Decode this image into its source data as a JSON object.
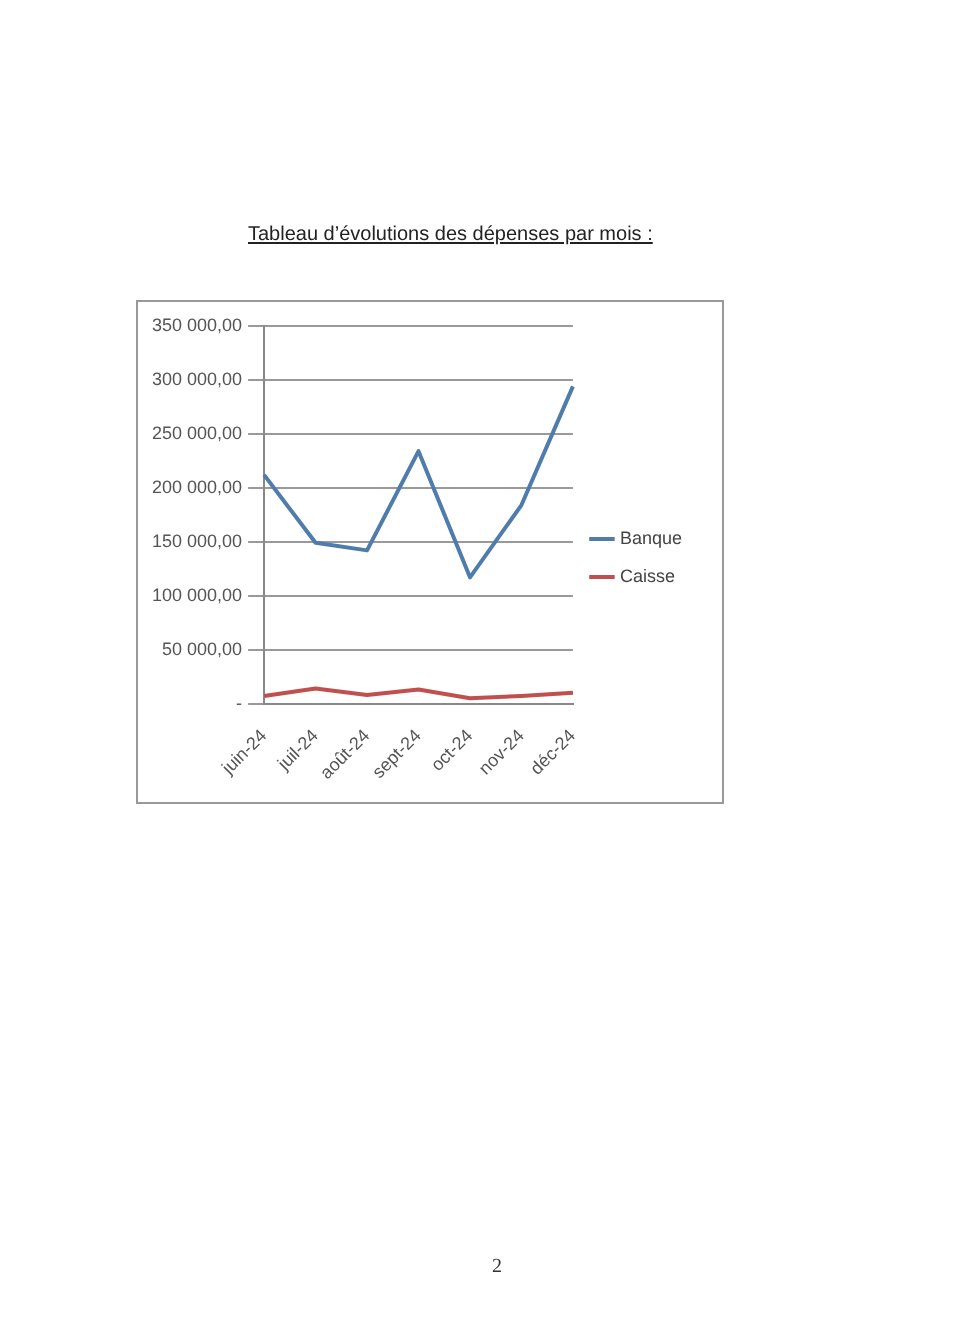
{
  "chart_data": {
    "type": "line",
    "title": "Tableau d’évolutions des dépenses  par mois :",
    "categories": [
      "juin-24",
      "juil-24",
      "août-24",
      "sept-24",
      "oct-24",
      "nov-24",
      "déc-24"
    ],
    "series": [
      {
        "name": "Banque",
        "color": "#4f7cac",
        "values": [
          212000,
          149000,
          142000,
          234000,
          117000,
          184000,
          294000
        ]
      },
      {
        "name": "Caisse",
        "color": "#c0504d",
        "values": [
          7000,
          14000,
          8000,
          13000,
          5000,
          7000,
          10000
        ]
      }
    ],
    "ylim": [
      0,
      350000
    ],
    "yticks": [
      {
        "value": 0,
        "label": "-"
      },
      {
        "value": 50000,
        "label": "50 000,00"
      },
      {
        "value": 100000,
        "label": "100 000,00"
      },
      {
        "value": 150000,
        "label": "150 000,00"
      },
      {
        "value": 200000,
        "label": "200 000,00"
      },
      {
        "value": 250000,
        "label": "250 000,00"
      },
      {
        "value": 300000,
        "label": "300 000,00"
      },
      {
        "value": 350000,
        "label": "350 000,00"
      }
    ],
    "grid": "y",
    "legend": "right",
    "marker": "none",
    "line_style": "solid",
    "annotations": [
      "2"
    ]
  }
}
